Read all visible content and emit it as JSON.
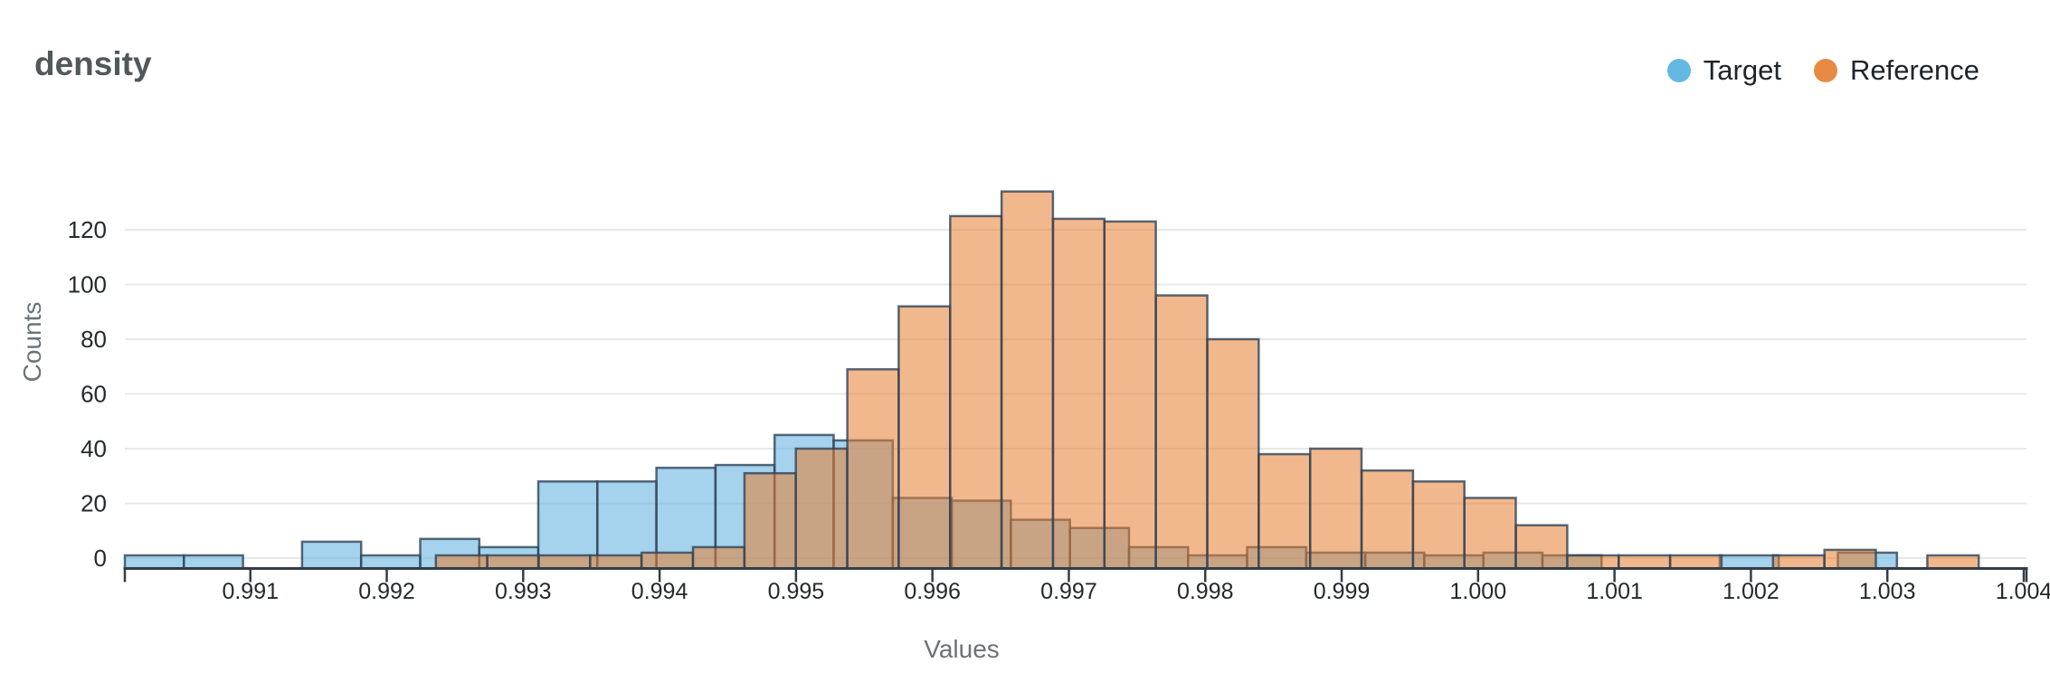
{
  "header": {
    "title": "density"
  },
  "axis_labels": {
    "x": "Values",
    "y": "Counts"
  },
  "legend": [
    {
      "label": "Target",
      "color": "#64b9e3"
    },
    {
      "label": "Reference",
      "color": "#e78a43"
    }
  ],
  "chart_data": {
    "type": "histogram",
    "mode": "overlay",
    "title": "density",
    "xlabel": "Values",
    "ylabel": "Counts",
    "grid": "horizontal",
    "legend_position": "top-right",
    "x_domain": [
      0.99008,
      1.00402
    ],
    "y_domain": [
      -3.8,
      168
    ],
    "x_tick_values": [
      0.991,
      0.992,
      0.993,
      0.994,
      0.995,
      0.996,
      0.997,
      0.998,
      0.999,
      1.0,
      1.001,
      1.002,
      1.003,
      1.004
    ],
    "x_tick_labels": [
      "0.991",
      "0.992",
      "0.993",
      "0.994",
      "0.995",
      "0.996",
      "0.997",
      "0.998",
      "0.999",
      "1.000",
      "1.001",
      "1.002",
      "1.003",
      "1.004"
    ],
    "y_ticks": [
      0,
      20,
      40,
      60,
      80,
      100,
      120
    ],
    "series": [
      {
        "name": "Target",
        "legend_color": "#64b9e3",
        "fill": "#6db7e0",
        "fill_opacity": 0.62,
        "stroke": "#2f4358",
        "stroke_opacity": 0.8,
        "bin_start": 0.99008,
        "bin_width": 0.000433,
        "counts": [
          1,
          1,
          0,
          6,
          1,
          7,
          4,
          28,
          28,
          33,
          34,
          45,
          43,
          22,
          21,
          14,
          11,
          4,
          1,
          4,
          2,
          2,
          1,
          2,
          1,
          0,
          0,
          1,
          0,
          2
        ]
      },
      {
        "name": "Reference",
        "legend_color": "#e78a43",
        "fill": "#e77e30",
        "fill_opacity": 0.55,
        "stroke": "#2f4358",
        "stroke_opacity": 0.8,
        "bin_start": 0.99236,
        "bin_width": 0.000377,
        "counts": [
          1,
          1,
          1,
          1,
          2,
          4,
          31,
          40,
          69,
          92,
          125,
          134,
          124,
          123,
          96,
          80,
          38,
          40,
          32,
          28,
          22,
          12,
          1,
          1,
          1,
          0,
          1,
          3,
          0,
          1
        ]
      }
    ]
  }
}
